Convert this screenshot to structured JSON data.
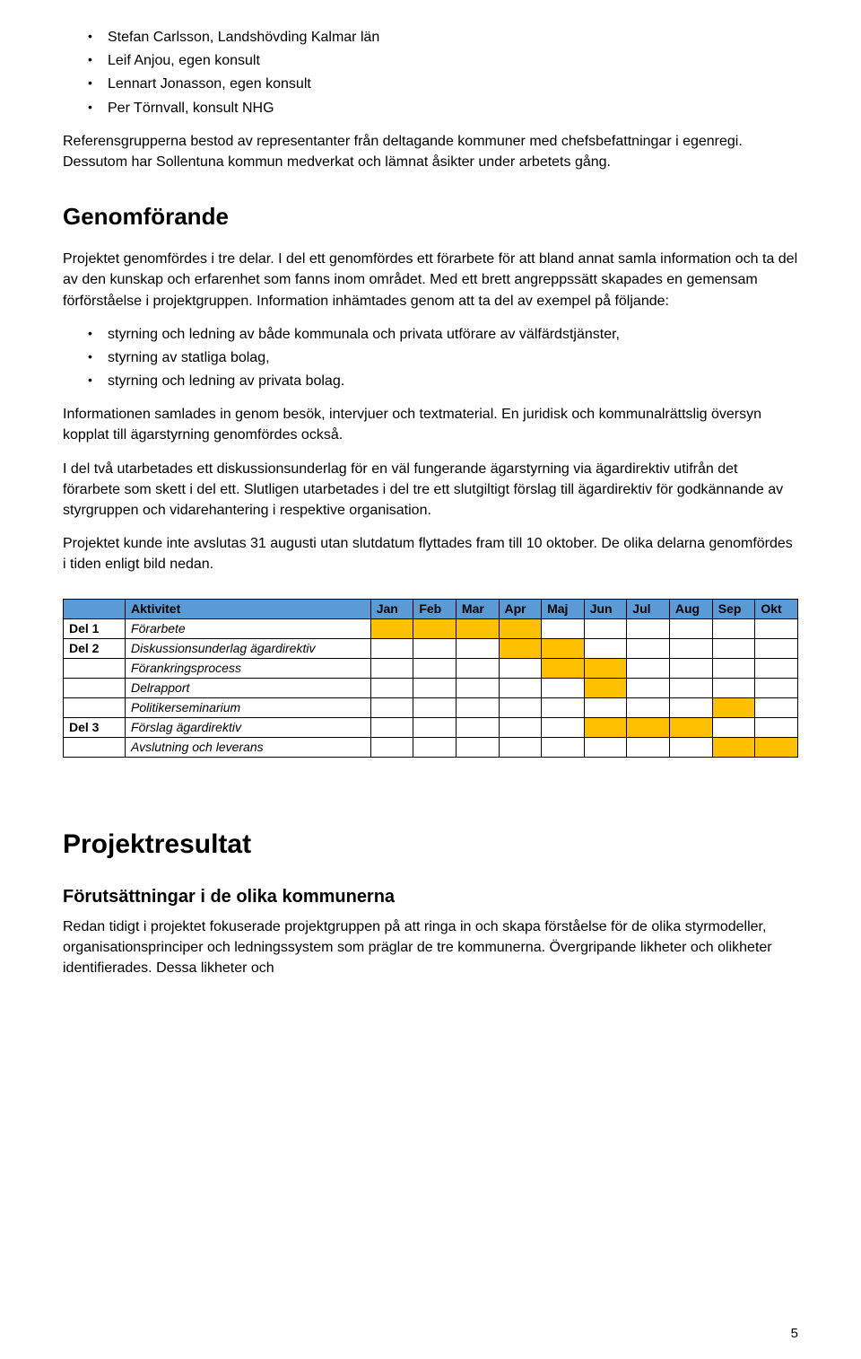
{
  "top_bullets": [
    "Stefan Carlsson, Landshövding Kalmar län",
    "Leif Anjou, egen konsult",
    "Lennart Jonasson, egen konsult",
    "Per Törnvall, konsult NHG"
  ],
  "after_top_p": "Referensgrupperna bestod av representanter från deltagande kommuner med chefsbefattningar i egenregi. Dessutom har Sollentuna kommun medverkat och lämnat åsikter under arbetets gång.",
  "h_genom": "Genomförande",
  "genom_p1": "Projektet genomfördes i tre delar. I del ett genomfördes ett förarbete för att bland annat samla information och ta del av den kunskap och erfarenhet som fanns inom området. Med ett brett angreppssätt skapades en gemensam förförståelse i projektgruppen. Information inhämtades genom att ta del av exempel på följande:",
  "genom_bullets": [
    "styrning och ledning av både kommunala och privata utförare av välfärdstjänster,",
    "styrning av statliga bolag,",
    "styrning och ledning av privata bolag."
  ],
  "genom_p2": "Informationen samlades in genom besök, intervjuer och textmaterial. En juridisk och kommunalrättslig översyn kopplat till ägarstyrning genomfördes också.",
  "genom_p3": "I del två utarbetades ett diskussionsunderlag för en väl fungerande ägarstyrning via ägardirektiv utifrån det förarbete som skett i del ett. Slutligen utarbetades i del tre ett slutgiltigt förslag till ägardirektiv för godkännande av styrgruppen och vidarehantering i respektive organisation.",
  "genom_p4": "Projektet kunde inte avslutas 31 augusti utan slutdatum flyttades fram till 10 oktober. De olika delarna genomfördes i tiden enligt bild nedan.",
  "gantt": {
    "header_bg": "#5b9bd5",
    "mark_bg": "#ffc000",
    "border": "#000000",
    "cols": [
      "",
      "Aktivitet",
      "Jan",
      "Feb",
      "Mar",
      "Apr",
      "Maj",
      "Jun",
      "Jul",
      "Aug",
      "Sep",
      "Okt"
    ],
    "rows": [
      {
        "del": "Del 1",
        "act": "Förarbete",
        "m": [
          1,
          1,
          1,
          1,
          0,
          0,
          0,
          0,
          0,
          0
        ]
      },
      {
        "del": "Del 2",
        "act": "Diskussionsunderlag ägardirektiv",
        "m": [
          0,
          0,
          0,
          1,
          1,
          0,
          0,
          0,
          0,
          0
        ]
      },
      {
        "del": "",
        "act": "Förankringsprocess",
        "m": [
          0,
          0,
          0,
          0,
          1,
          1,
          0,
          0,
          0,
          0
        ]
      },
      {
        "del": "",
        "act": "Delrapport",
        "m": [
          0,
          0,
          0,
          0,
          0,
          1,
          0,
          0,
          0,
          0
        ]
      },
      {
        "del": "",
        "act": "Politikerseminarium",
        "m": [
          0,
          0,
          0,
          0,
          0,
          0,
          0,
          0,
          1,
          0
        ]
      },
      {
        "del": "Del 3",
        "act": "Förslag ägardirektiv",
        "m": [
          0,
          0,
          0,
          0,
          0,
          1,
          1,
          1,
          0,
          0
        ]
      },
      {
        "del": "",
        "act": "Avslutning och leverans",
        "m": [
          0,
          0,
          0,
          0,
          0,
          0,
          0,
          0,
          1,
          1
        ]
      }
    ]
  },
  "h_result": "Projektresultat",
  "h_forut": "Förutsättningar i de olika kommunerna",
  "forut_p": "Redan tidigt i projektet fokuserade projektgruppen på att ringa in och skapa förståelse för de olika styrmodeller, organisationsprinciper och ledningssystem som präglar de tre kommunerna. Övergripande likheter och olikheter identifierades. Dessa likheter och",
  "page_num": "5"
}
